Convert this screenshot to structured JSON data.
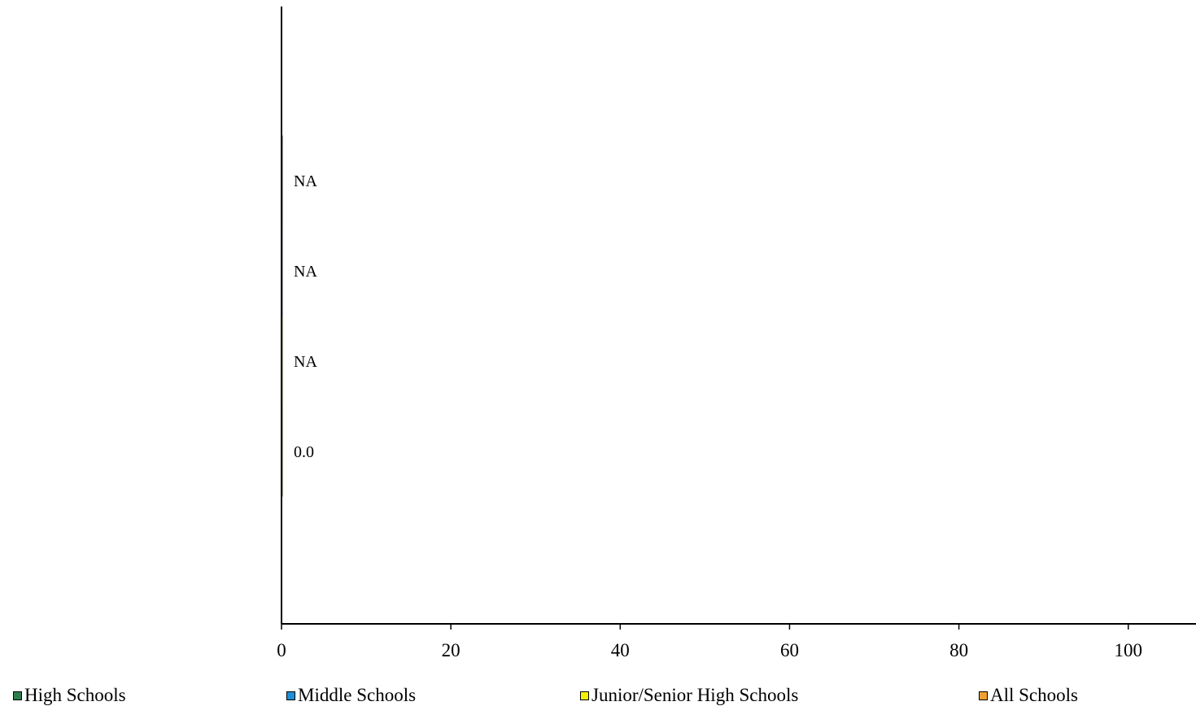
{
  "chart_data": {
    "type": "bar",
    "orientation": "horizontal",
    "title": "",
    "xlabel": "",
    "ylabel": "",
    "xlim": [
      0,
      108
    ],
    "xticks": [
      0,
      20,
      40,
      60,
      80,
      100
    ],
    "grid": false,
    "legend_position": "bottom",
    "series": [
      {
        "name": "High Schools",
        "color": "#2e7d4f",
        "value": null,
        "label": "NA"
      },
      {
        "name": "Middle Schools",
        "color": "#1e8fd6",
        "value": null,
        "label": "NA"
      },
      {
        "name": "Junior/Senior High Schools",
        "color": "#f5f000",
        "value": null,
        "label": "NA"
      },
      {
        "name": "All Schools",
        "color": "#f0a030",
        "value": 0.0,
        "label": "0.0"
      }
    ]
  }
}
